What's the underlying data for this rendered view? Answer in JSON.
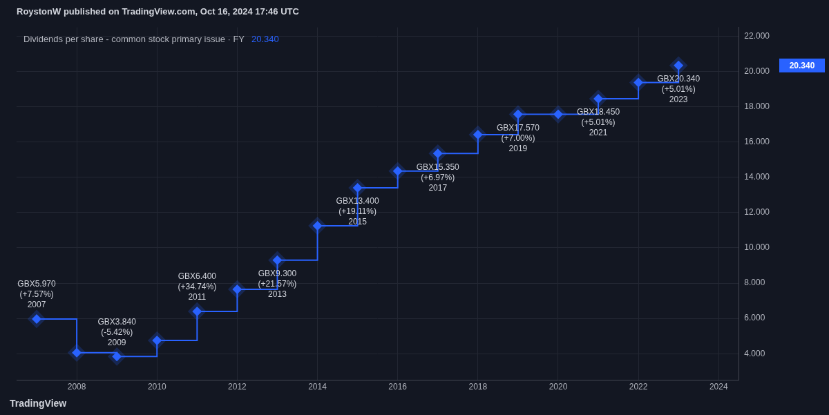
{
  "chart_data": {
    "type": "step",
    "title": "RoystonW published on TradingView.com, Oct 16, 2024 17:46 UTC",
    "x": [
      2007,
      2008,
      2009,
      2010,
      2011,
      2012,
      2013,
      2014,
      2015,
      2016,
      2017,
      2018,
      2019,
      2020,
      2021,
      2022,
      2023
    ],
    "series": [
      {
        "name": "Dividends per share - common stock primary issue · FY",
        "color": "#2962ff",
        "marker": "diamond",
        "values": [
          5.97,
          4.06,
          3.84,
          4.75,
          6.4,
          7.65,
          9.3,
          11.25,
          13.4,
          14.35,
          15.35,
          16.42,
          17.57,
          17.57,
          18.45,
          19.37,
          20.34
        ],
        "value_labels": [
          "GBX5.970",
          null,
          "GBX3.840",
          null,
          "GBX6.400",
          null,
          "GBX9.300",
          null,
          "GBX13.400",
          null,
          "GBX15.350",
          null,
          "GBX17.570",
          null,
          "GBX18.450",
          null,
          "GBX20.340"
        ],
        "change_labels": [
          "(+7.57%)",
          null,
          "(-5.42%)",
          null,
          "(+34.74%)",
          null,
          "(+21.57%)",
          null,
          "(+19.11%)",
          null,
          "(+6.97%)",
          null,
          "(+7.00%)",
          null,
          "(+5.01%)",
          null,
          "(+5.01%)"
        ]
      }
    ],
    "xlim": [
      2006.5,
      2024.5
    ],
    "xticks": [
      2008,
      2010,
      2012,
      2014,
      2016,
      2018,
      2020,
      2022,
      2024
    ],
    "ylim": [
      2.5,
      22.5
    ],
    "yticks": [
      {
        "value": 4,
        "label": "4.000"
      },
      {
        "value": 6,
        "label": "6.000"
      },
      {
        "value": 8,
        "label": "8.000"
      },
      {
        "value": 10,
        "label": "10.000"
      },
      {
        "value": 12,
        "label": "12.000"
      },
      {
        "value": 14,
        "label": "14.000"
      },
      {
        "value": 16,
        "label": "16.000"
      },
      {
        "value": 18,
        "label": "18.000"
      },
      {
        "value": 20,
        "label": "20.000"
      },
      {
        "value": 22,
        "label": "22.000"
      }
    ],
    "grid": true,
    "data_labels": true,
    "legend": "top-left",
    "annotations": [
      {
        "text": "20.340",
        "y": 20.34
      },
      {
        "text": "TradingView"
      }
    ]
  }
}
